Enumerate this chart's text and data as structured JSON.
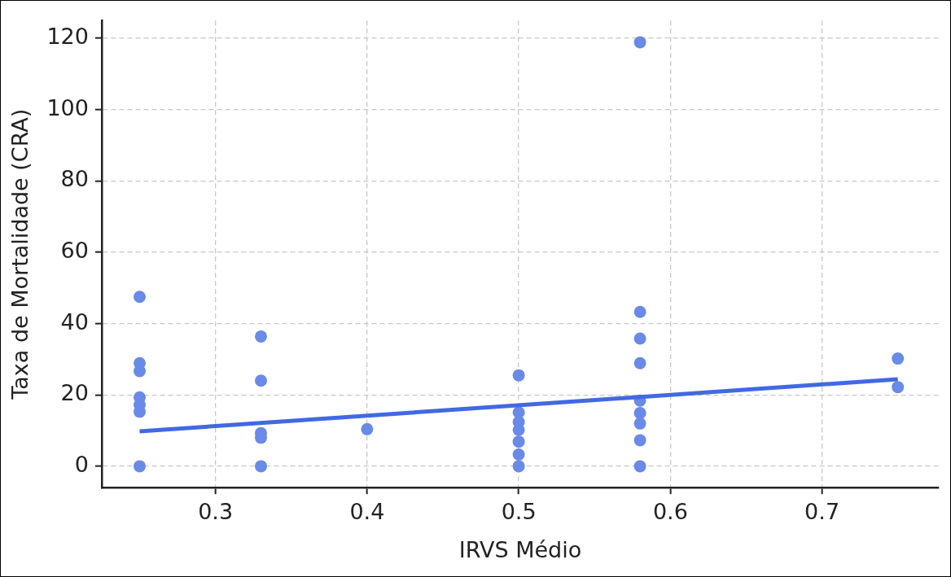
{
  "chart_data": {
    "type": "scatter",
    "xlabel": "IRVS Médio",
    "ylabel": "Taxa de Mortalidade (CRA)",
    "xlim": [
      0.225,
      0.777
    ],
    "xticks": [
      {
        "value": 0.3,
        "label": "0.3"
      },
      {
        "value": 0.4,
        "label": "0.4"
      },
      {
        "value": 0.5,
        "label": "0.5"
      },
      {
        "value": 0.6,
        "label": "0.6"
      },
      {
        "value": 0.7,
        "label": "0.7"
      }
    ],
    "ylim": [
      -6,
      125
    ],
    "yticks": [
      0,
      20,
      40,
      60,
      80,
      100,
      120
    ],
    "grid": true,
    "legend": false,
    "marker": "circle",
    "series": [
      {
        "color": "#6a8ae8",
        "x": [
          0.25,
          0.25,
          0.25,
          0.25,
          0.25,
          0.25,
          0.25,
          0.33,
          0.33,
          0.33,
          0.33,
          0.33,
          0.4,
          0.5,
          0.5,
          0.5,
          0.5,
          0.5,
          0.5,
          0.5,
          0.58,
          0.58,
          0.58,
          0.58,
          0.58,
          0.58,
          0.58,
          0.58,
          0.58,
          0.75,
          0.75
        ],
        "values": [
          47.5,
          28.9,
          26.7,
          19.3,
          17.2,
          15.3,
          0,
          36.4,
          24,
          9.3,
          8,
          0,
          10.4,
          25.5,
          15.1,
          12.4,
          10.2,
          6.9,
          3.3,
          0,
          118.9,
          43.3,
          35.8,
          28.9,
          18.4,
          14.9,
          12,
          7.3,
          0,
          30.2,
          22.2
        ]
      },
      {
        "type": "line",
        "color": "#4169e1",
        "x": [
          0.25,
          0.75
        ],
        "values": [
          9.8,
          24.4
        ],
        "line_style": "solid",
        "marker": "none"
      }
    ]
  }
}
